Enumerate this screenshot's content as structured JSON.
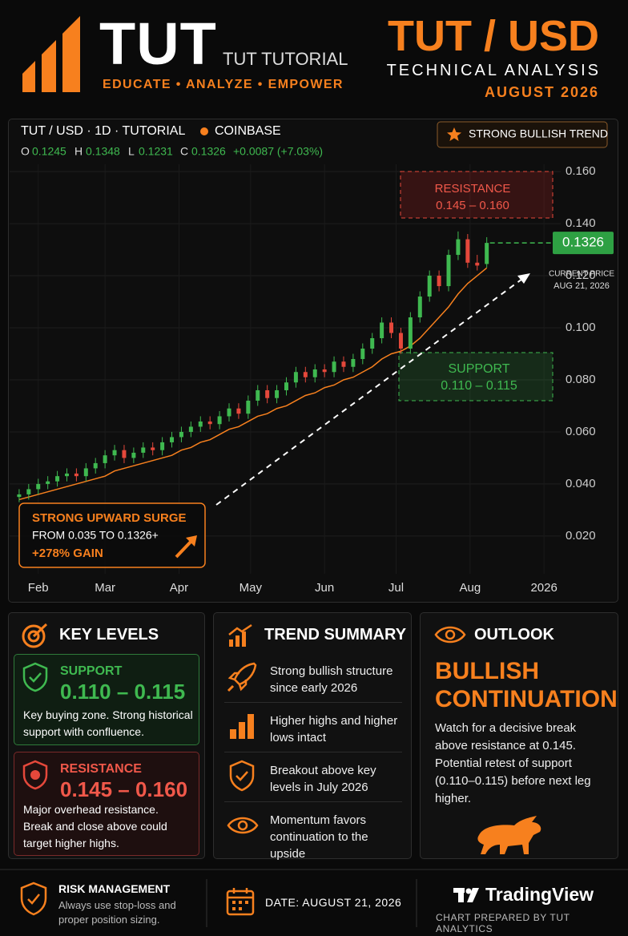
{
  "header": {
    "logo": "TUT",
    "subtitle": "TUT TUTORIAL",
    "tagline": "EDUCATE • ANALYZE • EMPOWER",
    "pair": "TUT / USD",
    "analysis": "TECHNICAL ANALYSIS",
    "date": "AUGUST 2026"
  },
  "chart_data": {
    "type": "candlestick",
    "title": "TUT / USD · 1D · TUTORIAL",
    "exchange": "COINBASE",
    "ohlc_letters": [
      "O",
      "H",
      "L",
      "C"
    ],
    "change": "+0.0087 (+7.03%)",
    "badge": "STRONG BULLISH TREND",
    "x": [
      24,
      28,
      32,
      36,
      40,
      44,
      48,
      52,
      56,
      60,
      64,
      68,
      72,
      76,
      80,
      84,
      88,
      92,
      96,
      100,
      104,
      108,
      112,
      116,
      120,
      124,
      128,
      132,
      136,
      140,
      144,
      148,
      152,
      156,
      160,
      164,
      168,
      172,
      176,
      180,
      184,
      188,
      192,
      196,
      200,
      204,
      208,
      212,
      216,
      220
    ],
    "open": [
      0.035,
      0.036,
      0.038,
      0.04,
      0.041,
      0.043,
      0.044,
      0.043,
      0.046,
      0.048,
      0.051,
      0.053,
      0.05,
      0.052,
      0.054,
      0.053,
      0.056,
      0.058,
      0.06,
      0.062,
      0.064,
      0.063,
      0.066,
      0.069,
      0.067,
      0.072,
      0.076,
      0.073,
      0.076,
      0.079,
      0.083,
      0.081,
      0.084,
      0.083,
      0.087,
      0.085,
      0.088,
      0.092,
      0.096,
      0.102,
      0.098,
      0.092,
      0.104,
      0.112,
      0.12,
      0.116,
      0.128,
      0.134,
      0.125,
      0.1245
    ],
    "high": [
      0.038,
      0.04,
      0.042,
      0.043,
      0.045,
      0.046,
      0.046,
      0.048,
      0.05,
      0.053,
      0.055,
      0.055,
      0.054,
      0.056,
      0.056,
      0.058,
      0.06,
      0.062,
      0.064,
      0.066,
      0.066,
      0.068,
      0.071,
      0.071,
      0.074,
      0.078,
      0.078,
      0.078,
      0.081,
      0.085,
      0.085,
      0.086,
      0.086,
      0.089,
      0.089,
      0.09,
      0.094,
      0.098,
      0.104,
      0.104,
      0.1,
      0.106,
      0.114,
      0.122,
      0.122,
      0.13,
      0.137,
      0.136,
      0.128,
      0.1348
    ],
    "low": [
      0.033,
      0.034,
      0.036,
      0.038,
      0.039,
      0.041,
      0.041,
      0.041,
      0.044,
      0.046,
      0.049,
      0.048,
      0.048,
      0.05,
      0.051,
      0.051,
      0.054,
      0.056,
      0.058,
      0.06,
      0.061,
      0.061,
      0.064,
      0.065,
      0.065,
      0.07,
      0.071,
      0.071,
      0.074,
      0.077,
      0.079,
      0.079,
      0.081,
      0.081,
      0.083,
      0.083,
      0.086,
      0.09,
      0.094,
      0.096,
      0.09,
      0.09,
      0.102,
      0.11,
      0.114,
      0.114,
      0.126,
      0.123,
      0.122,
      0.1231
    ],
    "close": [
      0.036,
      0.038,
      0.04,
      0.041,
      0.043,
      0.044,
      0.043,
      0.046,
      0.048,
      0.051,
      0.053,
      0.05,
      0.052,
      0.054,
      0.053,
      0.056,
      0.058,
      0.06,
      0.062,
      0.064,
      0.063,
      0.066,
      0.069,
      0.067,
      0.072,
      0.076,
      0.073,
      0.076,
      0.079,
      0.083,
      0.081,
      0.084,
      0.083,
      0.087,
      0.085,
      0.088,
      0.092,
      0.096,
      0.102,
      0.098,
      0.092,
      0.104,
      0.112,
      0.12,
      0.116,
      0.128,
      0.134,
      0.125,
      0.1239,
      0.1326
    ],
    "up_color": "#3fb950",
    "down_color": "#e5483b",
    "ma": {
      "color": "#f7801e",
      "values": [
        0.034,
        0.035,
        0.036,
        0.037,
        0.038,
        0.039,
        0.04,
        0.041,
        0.042,
        0.043,
        0.045,
        0.046,
        0.047,
        0.048,
        0.049,
        0.05,
        0.051,
        0.053,
        0.054,
        0.056,
        0.057,
        0.059,
        0.061,
        0.062,
        0.064,
        0.066,
        0.067,
        0.069,
        0.07,
        0.072,
        0.074,
        0.075,
        0.077,
        0.078,
        0.08,
        0.081,
        0.083,
        0.085,
        0.088,
        0.09,
        0.091,
        0.093,
        0.096,
        0.1,
        0.104,
        0.108,
        0.113,
        0.117,
        0.12,
        0.123
      ]
    },
    "xlim": [
      20,
      251
    ],
    "xticks": [
      {
        "value": 32,
        "label": "Feb"
      },
      {
        "value": 60,
        "label": "Mar"
      },
      {
        "value": 91,
        "label": "Apr"
      },
      {
        "value": 121,
        "label": "May"
      },
      {
        "value": 152,
        "label": "Jun"
      },
      {
        "value": 182,
        "label": "Jul"
      },
      {
        "value": 213,
        "label": "Aug"
      },
      {
        "value": 244,
        "label": "2026"
      }
    ],
    "ylim": [
      0.0055,
      0.1628
    ],
    "yticks": [
      {
        "value": 0.16,
        "label": "0.160"
      },
      {
        "value": 0.14,
        "label": "0.140"
      },
      {
        "value": 0.12,
        "label": "0.120"
      },
      {
        "value": 0.1,
        "label": "0.100"
      },
      {
        "value": 0.08,
        "label": "0.080"
      },
      {
        "value": 0.06,
        "label": "0.060"
      },
      {
        "value": 0.04,
        "label": "0.040"
      },
      {
        "value": 0.02,
        "label": "0.020"
      }
    ],
    "grid": true,
    "resistance": {
      "label": "RESISTANCE",
      "range": "0.145 – 0.160"
    },
    "support": {
      "label": "SUPPORT",
      "range": "0.110 – 0.115"
    },
    "current_price_label": "CURRENT PRICE",
    "current_date": "AUG 21, 2026",
    "surge": [
      "STRONG UPWARD SURGE",
      "FROM 0.035 TO 0.1326+",
      "+278% GAIN"
    ]
  },
  "key_levels": {
    "title": "KEY LEVELS",
    "support": {
      "label": "SUPPORT",
      "range": "0.110 – 0.115",
      "text": "Key buying zone. Strong historical support with confluence."
    },
    "resistance": {
      "label": "RESISTANCE",
      "range": "0.145 – 0.160",
      "text": "Major overhead resistance. Break and close above could target higher highs."
    }
  },
  "trend_summary": {
    "title": "TREND SUMMARY",
    "items": [
      "Strong bullish structure since early 2026",
      "Higher highs and higher lows intact",
      "Breakout above key levels in July 2026",
      "Momentum favors continuation to the upside"
    ]
  },
  "outlook": {
    "title": "OUTLOOK",
    "headline": "BULLISH CONTINUATION",
    "text": "Watch for a decisive break above resistance at 0.145. Potential retest of support (0.110–0.115) before next leg higher."
  },
  "footer": {
    "risk_title": "RISK MANAGEMENT",
    "risk_text": "Always use stop-loss and proper position sizing.",
    "date": "DATE: AUGUST 21, 2026",
    "brand": "TradingView",
    "prepared": "CHART PREPARED BY TUT ANALYTICS"
  }
}
